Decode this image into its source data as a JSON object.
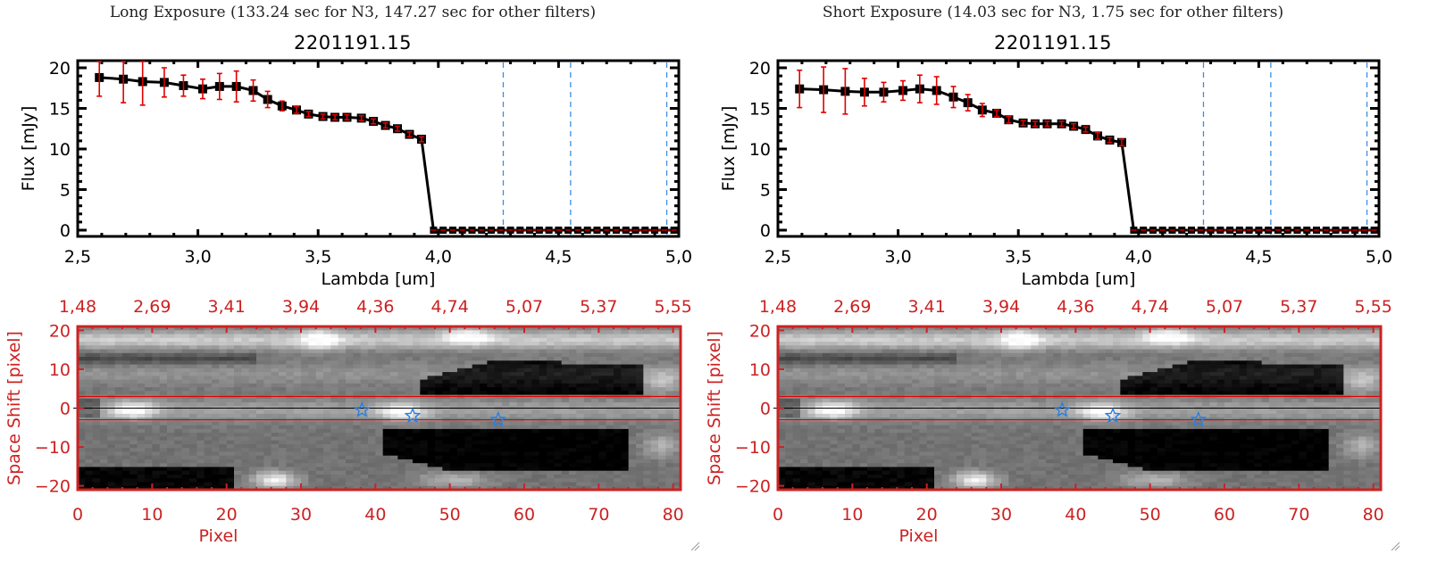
{
  "chart_data": [
    {
      "id": "long",
      "type": "line",
      "header": "Long Exposure (133.24 sec for N3, 147.27 sec for other filters)",
      "title": "2201191.15",
      "xlabel": "Lambda [um]",
      "ylabel": "Flux [mJy]",
      "xlim": [
        2.5,
        5.0
      ],
      "ylim": [
        0,
        20
      ],
      "xticks": [
        "2.5",
        "3.0",
        "3.5",
        "4.0",
        "4.5",
        "5.0"
      ],
      "yticks": [
        "0",
        "5",
        "10",
        "15",
        "20"
      ],
      "vlines": [
        4.27,
        4.55,
        4.95
      ],
      "series": [
        {
          "name": "flux",
          "x": [
            2.59,
            2.69,
            2.77,
            2.86,
            2.94,
            3.02,
            3.09,
            3.16,
            3.23,
            3.29,
            3.35,
            3.41,
            3.46,
            3.52,
            3.57,
            3.62,
            3.68,
            3.73,
            3.78,
            3.83,
            3.88,
            3.93
          ],
          "y": [
            18.8,
            18.6,
            18.3,
            18.2,
            17.8,
            17.4,
            17.7,
            17.7,
            17.2,
            16.1,
            15.3,
            14.8,
            14.3,
            14.0,
            13.9,
            13.9,
            13.8,
            13.4,
            12.9,
            12.5,
            11.8,
            11.2
          ],
          "err": [
            2.3,
            2.9,
            2.9,
            1.8,
            1.3,
            1.2,
            1.6,
            1.9,
            1.3,
            1.0,
            0.6,
            0.4,
            0.3,
            0.3,
            0.3,
            0.3,
            0.3,
            0.3,
            0.3,
            0.3,
            0.3,
            0.3
          ]
        }
      ],
      "zero_points_x": [
        3.98,
        4.02,
        4.06,
        4.1,
        4.14,
        4.18,
        4.22,
        4.26,
        4.3,
        4.34,
        4.38,
        4.42,
        4.46,
        4.5,
        4.54,
        4.58,
        4.62,
        4.66,
        4.7,
        4.74,
        4.78,
        4.82,
        4.86,
        4.9,
        4.94,
        4.98
      ],
      "image": {
        "xlabel": "Pixel",
        "ylabel": "Space Shift [pixel]",
        "xlim": [
          0,
          81
        ],
        "ylim": [
          -21,
          21
        ],
        "xticks": [
          "0",
          "10",
          "20",
          "30",
          "40",
          "50",
          "60",
          "70",
          "80"
        ],
        "yticks": [
          "20",
          "10",
          "0",
          "-10",
          "-20"
        ],
        "top_ticks": [
          "1.48",
          "2.69",
          "3.41",
          "3.94",
          "4.36",
          "4.74",
          "5.07",
          "5.37",
          "5.55"
        ],
        "aperture": [
          -3,
          3
        ],
        "stars": [
          {
            "x": 38.2,
            "y": -0.5
          },
          {
            "x": 45,
            "y": -2
          },
          {
            "x": 56.5,
            "y": -3
          }
        ]
      }
    },
    {
      "id": "short",
      "type": "line",
      "header": "Short Exposure (14.03 sec for N3, 1.75 sec for other filters)",
      "title": "2201191.15",
      "xlabel": "Lambda [um]",
      "ylabel": "Flux [mJy]",
      "xlim": [
        2.5,
        5.0
      ],
      "ylim": [
        0,
        20
      ],
      "xticks": [
        "2.5",
        "3.0",
        "3.5",
        "4.0",
        "4.5",
        "5.0"
      ],
      "yticks": [
        "0",
        "5",
        "10",
        "15",
        "20"
      ],
      "vlines": [
        4.27,
        4.55,
        4.95
      ],
      "series": [
        {
          "name": "flux",
          "x": [
            2.59,
            2.69,
            2.78,
            2.86,
            2.94,
            3.02,
            3.09,
            3.16,
            3.23,
            3.29,
            3.35,
            3.41,
            3.46,
            3.52,
            3.57,
            3.62,
            3.68,
            3.73,
            3.78,
            3.83,
            3.88,
            3.93
          ],
          "y": [
            17.4,
            17.3,
            17.1,
            17.0,
            17.0,
            17.2,
            17.4,
            17.2,
            16.4,
            15.7,
            14.8,
            14.4,
            13.6,
            13.2,
            13.1,
            13.1,
            13.1,
            12.8,
            12.4,
            11.6,
            11.1,
            10.8
          ],
          "err": [
            2.3,
            2.8,
            2.8,
            1.7,
            1.2,
            1.2,
            1.7,
            1.7,
            1.3,
            1.0,
            0.8,
            0.4,
            0.4,
            0.3,
            0.3,
            0.3,
            0.3,
            0.3,
            0.3,
            0.4,
            0.3,
            0.4
          ]
        }
      ],
      "zero_points_x": [
        3.98,
        4.02,
        4.06,
        4.1,
        4.14,
        4.18,
        4.22,
        4.26,
        4.3,
        4.34,
        4.38,
        4.42,
        4.46,
        4.5,
        4.54,
        4.58,
        4.62,
        4.66,
        4.7,
        4.74,
        4.78,
        4.82,
        4.86,
        4.9,
        4.94,
        4.98
      ],
      "image": {
        "xlabel": "Pixel",
        "ylabel": "Space Shift [pixel]",
        "xlim": [
          0,
          81
        ],
        "ylim": [
          -21,
          21
        ],
        "xticks": [
          "0",
          "10",
          "20",
          "30",
          "40",
          "50",
          "60",
          "70",
          "80"
        ],
        "yticks": [
          "20",
          "10",
          "0",
          "-10",
          "-20"
        ],
        "top_ticks": [
          "1.48",
          "2.69",
          "3.41",
          "3.94",
          "4.36",
          "4.74",
          "5.07",
          "5.37",
          "5.55"
        ],
        "aperture": [
          -3,
          3
        ],
        "stars": [
          {
            "x": 38.2,
            "y": -0.5
          },
          {
            "x": 45,
            "y": -2
          },
          {
            "x": 56.5,
            "y": -3
          }
        ]
      }
    }
  ],
  "colors": {
    "line": "#000000",
    "errorbar": "#e00000",
    "vline": "#3a8ee6",
    "zeroline": "#e00000",
    "image_axis": "#cc2222",
    "star": "#2a7fe0"
  }
}
